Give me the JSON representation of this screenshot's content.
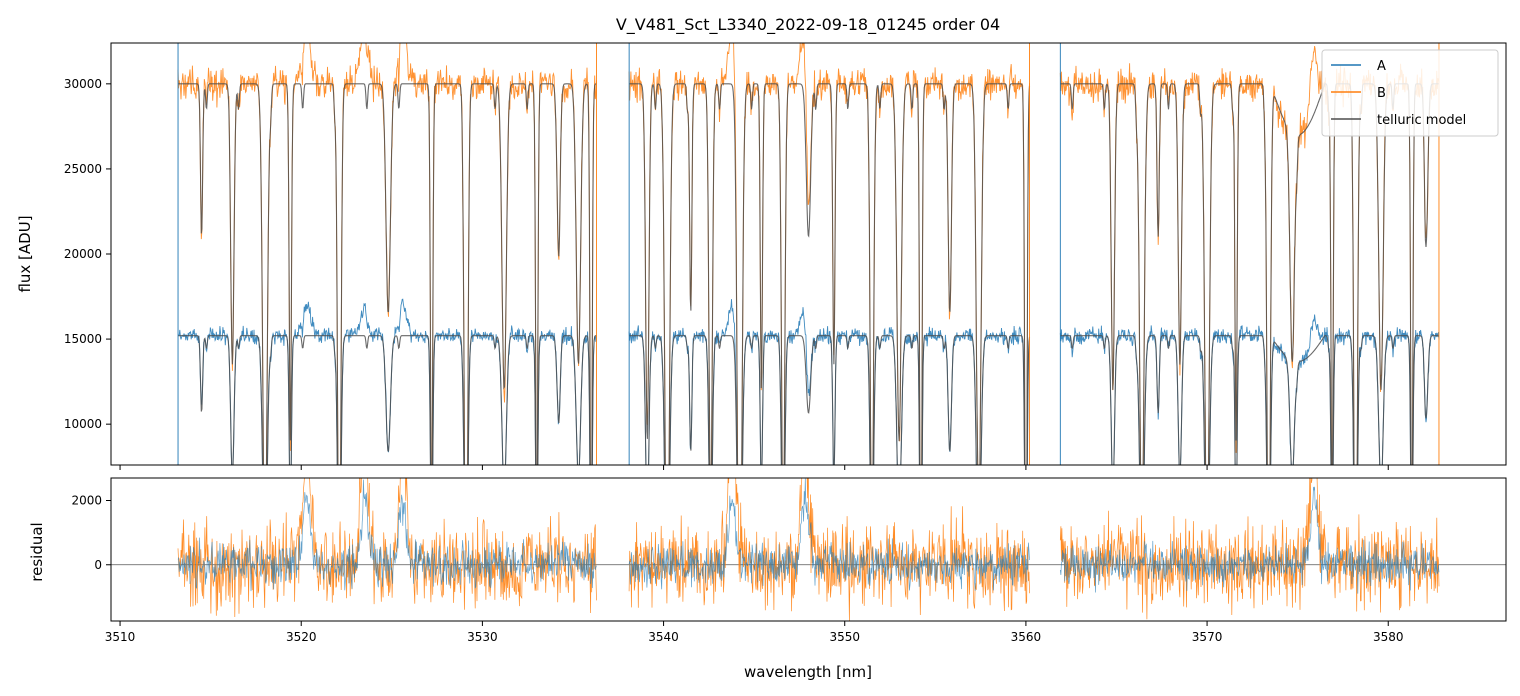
{
  "chart_data": [
    {
      "type": "line",
      "title": "V_V481_Sct_L3340_2022-09-18_01245  order 04",
      "xlabel": "",
      "ylabel": "flux [ADU]",
      "xlim": [
        3509.5,
        3586.5
      ],
      "ylim": [
        7600,
        32400
      ],
      "yticks": [
        10000,
        15000,
        20000,
        25000,
        30000
      ],
      "ytick_labels": [
        "10000",
        "15000",
        "20000",
        "25000",
        "30000"
      ],
      "legend": "top-right",
      "grid": false,
      "segments": [
        [
          3513.2,
          3536.3
        ],
        [
          3538.1,
          3560.2
        ],
        [
          3561.9,
          3582.8
        ]
      ],
      "series": [
        {
          "name": "A",
          "color": "#1f77b4",
          "continuum": 15200,
          "noise": 350
        },
        {
          "name": "B",
          "color": "#ff7f0e",
          "continuum": 30000,
          "noise": 700
        },
        {
          "name": "telluric model",
          "color": "#4d4d4d"
        }
      ],
      "absorption_lines_nm": [
        3514.5,
        3516.2,
        3518.0,
        3519.4,
        3522.1,
        3524.8,
        3527.2,
        3529.1,
        3531.2,
        3533.0,
        3534.2,
        3535.3,
        3536.0,
        3539.1,
        3540.2,
        3541.5,
        3542.6,
        3544.2,
        3545.4,
        3546.6,
        3548.0,
        3549.4,
        3551.5,
        3553.0,
        3554.2,
        3555.8,
        3557.4,
        3560.0,
        3564.8,
        3566.4,
        3567.3,
        3568.5,
        3570.0,
        3571.6,
        3573.4,
        3574.7,
        3576.9,
        3578.2,
        3579.6,
        3581.3,
        3582.1
      ],
      "emission_features_nm": [
        3520.3,
        3523.5,
        3525.6,
        3543.8,
        3547.8,
        3575.9
      ]
    },
    {
      "type": "line",
      "title": "",
      "xlabel": "wavelength [nm]",
      "ylabel": "residual",
      "xlim": [
        3509.5,
        3586.5
      ],
      "ylim": [
        -1750,
        2700
      ],
      "xticks": [
        3510,
        3520,
        3530,
        3540,
        3550,
        3560,
        3570,
        3580
      ],
      "xtick_labels": [
        "3510",
        "3520",
        "3530",
        "3540",
        "3550",
        "3560",
        "3570",
        "3580"
      ],
      "yticks": [
        0,
        2000
      ],
      "ytick_labels": [
        "0",
        "2000"
      ],
      "zero_line": 0,
      "series": [
        {
          "name": "A",
          "color": "#1f77b4",
          "noise": 450
        },
        {
          "name": "B",
          "color": "#ff7f0e",
          "noise": 900
        }
      ]
    }
  ]
}
